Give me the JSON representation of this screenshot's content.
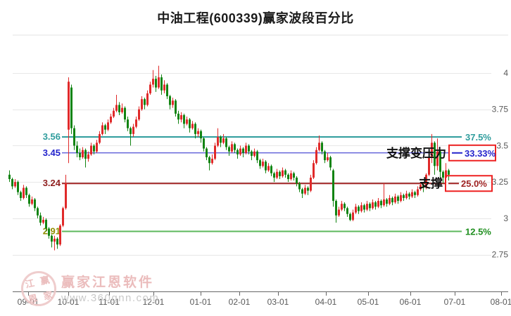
{
  "title": "中油工程(600339)赢家波段百分比",
  "watermark": {
    "brand": "赢家江恩软件",
    "url": "www.360gnn.com",
    "seal": [
      "江",
      "赢",
      "恩",
      "家"
    ]
  },
  "chart_data": {
    "type": "candlestick",
    "title": "中油工程(600339)赢家波段百分比",
    "xlabel": "",
    "ylabel": "",
    "grid": true,
    "ylim": [
      2.7,
      4.1
    ],
    "y_ticks": [
      {
        "label": "4",
        "value": 4.0
      },
      {
        "label": "3.75",
        "value": 3.75
      },
      {
        "label": "3.5",
        "value": 3.5
      },
      {
        "label": "3.25",
        "value": 3.25
      },
      {
        "label": "3",
        "value": 3.0
      },
      {
        "label": "2.75",
        "value": 2.75
      }
    ],
    "x_ticks": [
      "09-01",
      "10-01",
      "11-01",
      "12-01",
      "01-01",
      "02-01",
      "03-01",
      "04-01",
      "05-01",
      "06-01",
      "07-01",
      "08-01"
    ],
    "levels": [
      {
        "price": 3.56,
        "label": "3.56",
        "percent": "37.5%",
        "color": "#2f9d9d",
        "label_color": "#2f9d9d",
        "percent_color": "#2f9d9d",
        "boxed": false,
        "width": 2
      },
      {
        "price": 3.45,
        "label": "3.45",
        "percent": "33.33%",
        "color": "#2424cc",
        "label_color": "#2424cc",
        "percent_color": "#2424cc",
        "boxed": true,
        "width": 1
      },
      {
        "price": 3.24,
        "label": "3.24",
        "percent": "25.0%",
        "color": "#a02424",
        "label_color": "#8f1f1f",
        "percent_color": "#a02424",
        "boxed": true,
        "width": 2
      },
      {
        "price": 2.91,
        "label": "2.91",
        "percent": "12.5%",
        "color": "#5cb85c",
        "label_color": "#8f8f00",
        "percent_color": "#1f8f1f",
        "boxed": false,
        "width": 2
      }
    ],
    "annotations": [
      {
        "text": "支撑变压力",
        "level_index": 1
      },
      {
        "text": "支撑",
        "level_index": 2
      }
    ],
    "colors": {
      "up": "#e02a2a",
      "down": "#128412",
      "box_border": "#ee2222",
      "grid": "#e7e7e7",
      "axis_text": "#595959",
      "axis_line": "#666666",
      "annotation": "#111111"
    },
    "candles": [
      [
        3.3,
        3.33,
        3.25,
        3.27
      ],
      [
        3.27,
        3.28,
        3.2,
        3.22
      ],
      [
        3.22,
        3.27,
        3.21,
        3.25
      ],
      [
        3.25,
        3.26,
        3.16,
        3.18
      ],
      [
        3.18,
        3.19,
        3.12,
        3.14
      ],
      [
        3.14,
        3.23,
        3.13,
        3.21
      ],
      [
        3.21,
        3.22,
        3.14,
        3.16
      ],
      [
        3.16,
        3.17,
        3.08,
        3.1
      ],
      [
        3.1,
        3.15,
        3.09,
        3.13
      ],
      [
        3.13,
        3.14,
        3.05,
        3.07
      ],
      [
        3.07,
        3.08,
        3.0,
        3.02
      ],
      [
        3.02,
        3.04,
        2.95,
        2.97
      ],
      [
        2.97,
        3.01,
        2.96,
        2.99
      ],
      [
        2.99,
        3.0,
        2.91,
        2.93
      ],
      [
        2.93,
        2.94,
        2.86,
        2.88
      ],
      [
        2.88,
        2.89,
        2.8,
        2.84
      ],
      [
        2.84,
        2.88,
        2.78,
        2.86
      ],
      [
        2.86,
        2.87,
        2.79,
        2.82
      ],
      [
        2.82,
        2.96,
        2.81,
        2.95
      ],
      [
        2.95,
        3.08,
        2.94,
        3.07
      ],
      [
        3.07,
        3.3,
        3.06,
        3.24
      ],
      [
        3.61,
        3.97,
        3.38,
        3.94
      ],
      [
        3.9,
        3.92,
        3.58,
        3.62
      ],
      [
        3.62,
        3.64,
        3.47,
        3.5
      ],
      [
        3.5,
        3.53,
        3.42,
        3.45
      ],
      [
        3.45,
        3.48,
        3.4,
        3.42
      ],
      [
        3.42,
        3.49,
        3.41,
        3.47
      ],
      [
        3.47,
        3.48,
        3.35,
        3.41
      ],
      [
        3.41,
        3.46,
        3.39,
        3.44
      ],
      [
        3.44,
        3.52,
        3.43,
        3.5
      ],
      [
        3.5,
        3.51,
        3.44,
        3.46
      ],
      [
        3.46,
        3.54,
        3.45,
        3.52
      ],
      [
        3.52,
        3.6,
        3.51,
        3.58
      ],
      [
        3.58,
        3.66,
        3.57,
        3.64
      ],
      [
        3.64,
        3.65,
        3.58,
        3.61
      ],
      [
        3.61,
        3.68,
        3.6,
        3.66
      ],
      [
        3.66,
        3.72,
        3.65,
        3.7
      ],
      [
        3.7,
        3.76,
        3.69,
        3.74
      ],
      [
        3.74,
        3.85,
        3.73,
        3.78
      ],
      [
        3.78,
        3.8,
        3.71,
        3.73
      ],
      [
        3.73,
        3.79,
        3.72,
        3.76
      ],
      [
        3.76,
        3.77,
        3.66,
        3.68
      ],
      [
        3.68,
        3.7,
        3.6,
        3.62
      ],
      [
        3.62,
        3.63,
        3.5,
        3.58
      ],
      [
        3.58,
        3.65,
        3.56,
        3.63
      ],
      [
        3.63,
        3.7,
        3.62,
        3.68
      ],
      [
        3.68,
        3.77,
        3.67,
        3.75
      ],
      [
        3.75,
        3.84,
        3.74,
        3.82
      ],
      [
        3.82,
        3.83,
        3.75,
        3.78
      ],
      [
        3.78,
        3.88,
        3.77,
        3.86
      ],
      [
        3.86,
        3.94,
        3.85,
        3.92
      ],
      [
        3.92,
        4.02,
        3.9,
        3.96
      ],
      [
        3.96,
        3.98,
        3.87,
        3.9
      ],
      [
        3.9,
        4.05,
        3.89,
        3.97
      ],
      [
        3.97,
        3.99,
        3.85,
        3.88
      ],
      [
        3.88,
        3.95,
        3.86,
        3.92
      ],
      [
        3.92,
        3.93,
        3.82,
        3.84
      ],
      [
        3.84,
        3.85,
        3.75,
        3.78
      ],
      [
        3.78,
        3.83,
        3.76,
        3.81
      ],
      [
        3.81,
        3.82,
        3.7,
        3.72
      ],
      [
        3.72,
        3.74,
        3.65,
        3.68
      ],
      [
        3.68,
        3.73,
        3.66,
        3.71
      ],
      [
        3.71,
        3.72,
        3.62,
        3.65
      ],
      [
        3.65,
        3.7,
        3.64,
        3.68
      ],
      [
        3.68,
        3.69,
        3.59,
        3.62
      ],
      [
        3.62,
        3.67,
        3.61,
        3.65
      ],
      [
        3.65,
        3.66,
        3.55,
        3.58
      ],
      [
        3.58,
        3.62,
        3.56,
        3.6
      ],
      [
        3.6,
        3.61,
        3.52,
        3.55
      ],
      [
        3.55,
        3.56,
        3.46,
        3.48
      ],
      [
        3.48,
        3.49,
        3.4,
        3.42
      ],
      [
        3.42,
        3.43,
        3.33,
        3.38
      ],
      [
        3.38,
        3.44,
        3.37,
        3.41
      ],
      [
        3.41,
        3.52,
        3.4,
        3.5
      ],
      [
        3.5,
        3.62,
        3.49,
        3.56
      ],
      [
        3.56,
        3.57,
        3.49,
        3.52
      ],
      [
        3.52,
        3.58,
        3.51,
        3.55
      ],
      [
        3.55,
        3.56,
        3.47,
        3.49
      ],
      [
        3.49,
        3.5,
        3.43,
        3.46
      ],
      [
        3.46,
        3.53,
        3.45,
        3.51
      ],
      [
        3.51,
        3.52,
        3.45,
        3.47
      ],
      [
        3.47,
        3.48,
        3.41,
        3.44
      ],
      [
        3.44,
        3.5,
        3.43,
        3.48
      ],
      [
        3.48,
        3.49,
        3.42,
        3.45
      ],
      [
        3.45,
        3.52,
        3.44,
        3.5
      ],
      [
        3.5,
        3.51,
        3.44,
        3.46
      ],
      [
        3.46,
        3.47,
        3.4,
        3.43
      ],
      [
        3.43,
        3.48,
        3.42,
        3.46
      ],
      [
        3.46,
        3.47,
        3.38,
        3.4
      ],
      [
        3.4,
        3.41,
        3.34,
        3.36
      ],
      [
        3.36,
        3.41,
        3.35,
        3.39
      ],
      [
        3.39,
        3.4,
        3.31,
        3.33
      ],
      [
        3.33,
        3.38,
        3.32,
        3.36
      ],
      [
        3.36,
        3.37,
        3.29,
        3.31
      ],
      [
        3.31,
        3.32,
        3.25,
        3.28
      ],
      [
        3.28,
        3.34,
        3.27,
        3.32
      ],
      [
        3.32,
        3.33,
        3.27,
        3.29
      ],
      [
        3.29,
        3.35,
        3.28,
        3.33
      ],
      [
        3.33,
        3.34,
        3.28,
        3.3
      ],
      [
        3.3,
        3.31,
        3.25,
        3.27
      ],
      [
        3.27,
        3.33,
        3.26,
        3.31
      ],
      [
        3.31,
        3.32,
        3.26,
        3.28
      ],
      [
        3.28,
        3.29,
        3.22,
        3.24
      ],
      [
        3.24,
        3.25,
        3.18,
        3.2
      ],
      [
        3.2,
        3.21,
        3.14,
        3.17
      ],
      [
        3.17,
        3.23,
        3.16,
        3.21
      ],
      [
        3.21,
        3.22,
        3.16,
        3.19
      ],
      [
        3.19,
        3.3,
        3.18,
        3.28
      ],
      [
        3.28,
        3.4,
        3.27,
        3.38
      ],
      [
        3.38,
        3.49,
        3.37,
        3.47
      ],
      [
        3.47,
        3.57,
        3.46,
        3.52
      ],
      [
        3.52,
        3.53,
        3.44,
        3.46
      ],
      [
        3.46,
        3.47,
        3.38,
        3.4
      ],
      [
        3.4,
        3.45,
        3.39,
        3.42
      ],
      [
        3.42,
        3.43,
        3.33,
        3.35
      ],
      [
        3.33,
        3.34,
        3.08,
        3.12
      ],
      [
        3.12,
        3.13,
        2.97,
        3.02
      ],
      [
        3.02,
        3.08,
        3.01,
        3.06
      ],
      [
        3.06,
        3.12,
        3.05,
        3.1
      ],
      [
        3.1,
        3.11,
        3.05,
        3.07
      ],
      [
        3.07,
        3.08,
        3.01,
        3.03
      ],
      [
        3.03,
        3.04,
        2.98,
        2.99
      ],
      [
        2.99,
        3.06,
        2.98,
        3.04
      ],
      [
        3.04,
        3.1,
        3.03,
        3.08
      ],
      [
        3.08,
        3.09,
        3.03,
        3.05
      ],
      [
        3.05,
        3.11,
        3.04,
        3.09
      ],
      [
        3.09,
        3.1,
        3.04,
        3.06
      ],
      [
        3.06,
        3.12,
        3.05,
        3.1
      ],
      [
        3.1,
        3.11,
        3.05,
        3.07
      ],
      [
        3.07,
        3.13,
        3.06,
        3.11
      ],
      [
        3.11,
        3.12,
        3.06,
        3.08
      ],
      [
        3.08,
        3.14,
        3.07,
        3.12
      ],
      [
        3.12,
        3.13,
        3.07,
        3.09
      ],
      [
        3.09,
        3.24,
        3.08,
        3.13
      ],
      [
        3.13,
        3.14,
        3.08,
        3.1
      ],
      [
        3.1,
        3.16,
        3.09,
        3.14
      ],
      [
        3.14,
        3.15,
        3.09,
        3.11
      ],
      [
        3.11,
        3.17,
        3.1,
        3.15
      ],
      [
        3.15,
        3.16,
        3.1,
        3.12
      ],
      [
        3.12,
        3.18,
        3.11,
        3.16
      ],
      [
        3.16,
        3.17,
        3.12,
        3.14
      ],
      [
        3.14,
        3.19,
        3.13,
        3.17
      ],
      [
        3.17,
        3.18,
        3.13,
        3.15
      ],
      [
        3.15,
        3.2,
        3.14,
        3.18
      ],
      [
        3.18,
        3.19,
        3.14,
        3.16
      ],
      [
        3.16,
        3.22,
        3.15,
        3.2
      ],
      [
        3.2,
        3.25,
        3.19,
        3.23
      ],
      [
        3.23,
        3.24,
        3.18,
        3.21
      ],
      [
        3.21,
        3.31,
        3.2,
        3.3
      ],
      [
        3.3,
        3.44,
        3.29,
        3.42
      ],
      [
        3.42,
        3.58,
        3.38,
        3.52
      ],
      [
        3.52,
        3.53,
        3.3,
        3.36
      ],
      [
        3.36,
        3.55,
        3.33,
        3.46
      ],
      [
        3.46,
        3.47,
        3.28,
        3.32
      ],
      [
        3.32,
        3.33,
        3.24,
        3.28
      ],
      [
        3.28,
        3.38,
        3.27,
        3.33
      ],
      [
        3.33,
        3.34,
        3.26,
        3.3
      ]
    ]
  }
}
